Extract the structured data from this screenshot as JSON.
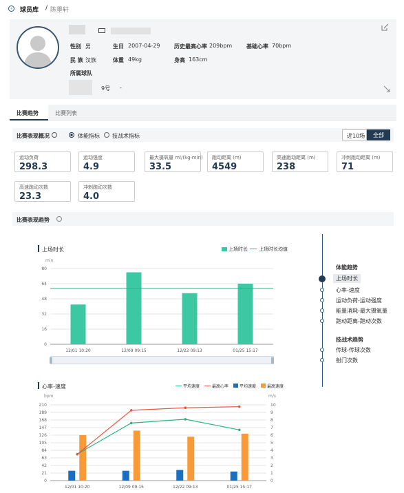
{
  "breadcrumb": {
    "root": "球员库",
    "sep": "/",
    "current": "陈墨轩"
  },
  "player": {
    "gender_label": "性别",
    "gender": "男",
    "birth_label": "生日",
    "birth": "2007-04-29",
    "maxhr_label": "历史最高心率",
    "maxhr": "209bpm",
    "basehr_label": "基础心率",
    "basehr": "70bpm",
    "ethnic_label": "民 族",
    "ethnic": "汉族",
    "weight_label": "体重",
    "weight": "49kg",
    "height_label": "身高",
    "height": "163cm",
    "team_label": "所属球队",
    "number": "9号",
    "position": "-"
  },
  "tabs": [
    "比赛趋势",
    "比赛列表"
  ],
  "overview": {
    "title": "比赛表现概况",
    "radio1": "体能指标",
    "radio2": "技战术指标",
    "filter_recent": "近10场",
    "filter_all": "全部"
  },
  "metrics": [
    {
      "label": "运动负荷",
      "value": "298.3"
    },
    {
      "label": "运动强度",
      "value": "4.9"
    },
    {
      "label": "最大摄氧量 ml/(kg·min)",
      "value": "33.5"
    },
    {
      "label": "跑动距离 (m)",
      "value": "4549"
    },
    {
      "label": "高速跑动距离 (m)",
      "value": "238"
    },
    {
      "label": "冲刺跑动距离 (m)",
      "value": "71"
    },
    {
      "label": "高速跑动次数",
      "value": "23.3"
    },
    {
      "label": "冲刺跑动次数",
      "value": "4.0"
    }
  ],
  "trend_title": "比赛表现趋势",
  "nav": {
    "group1": "体能趋势",
    "items1": [
      "上场时长",
      "心率-速度",
      "运动负荷-运动强度",
      "能量消耗-最大摄氧量",
      "跑动距离-跑动次数"
    ],
    "group2": "技战术趋势",
    "items2": [
      "传球-传球次数",
      "射门次数"
    ]
  },
  "colors": {
    "teal": "#3cc8a3",
    "red": "#e8583c",
    "blue": "#1a6fbf",
    "orange": "#f79a38",
    "green_line": "#2bb38a",
    "navy": "#233a50"
  },
  "chart_data": [
    {
      "type": "bar",
      "title": "上场时长",
      "ylabel": "min",
      "categories": [
        "12/01 10:20",
        "12/09 09:15",
        "12/22 09:13",
        "01/25 15:17"
      ],
      "series": [
        {
          "name": "上场时长",
          "values": [
            42,
            76,
            54,
            64
          ]
        }
      ],
      "avg_line": {
        "name": "上场时长均值",
        "value": 59
      },
      "ylim": [
        0,
        80
      ],
      "yticks": [
        0,
        16,
        32,
        48,
        64,
        80
      ]
    },
    {
      "type": "bar",
      "title": "心率-速度",
      "categories": [
        "12/01 10:20",
        "12/09 09:15",
        "12/22 09:13",
        "01/25 15:17"
      ],
      "left_axis": {
        "label": "bpm",
        "ylim": [
          0,
          210
        ],
        "ticks": [
          0,
          21,
          42,
          63,
          84,
          105,
          126,
          147,
          168,
          189,
          210
        ]
      },
      "right_axis": {
        "label": "m/s",
        "ylim": [
          0,
          10
        ],
        "ticks": [
          0,
          1,
          2,
          3,
          4,
          5,
          6,
          7,
          8,
          9,
          10
        ]
      },
      "series": [
        {
          "name": "平均速度",
          "kind": "line",
          "axis": "right",
          "values": [
            3.5,
            7.6,
            8.1,
            6.7
          ]
        },
        {
          "name": "最高心率",
          "kind": "line",
          "axis": "left",
          "values": [
            73,
            195,
            202,
            205
          ]
        },
        {
          "name": "平均速度",
          "kind": "bar",
          "axis": "right",
          "values": [
            1.3,
            1.3,
            1.4,
            1.2
          ]
        },
        {
          "name": "最高速度",
          "kind": "bar",
          "axis": "right",
          "values": [
            6.0,
            6.6,
            5.8,
            6.2
          ]
        }
      ]
    }
  ]
}
